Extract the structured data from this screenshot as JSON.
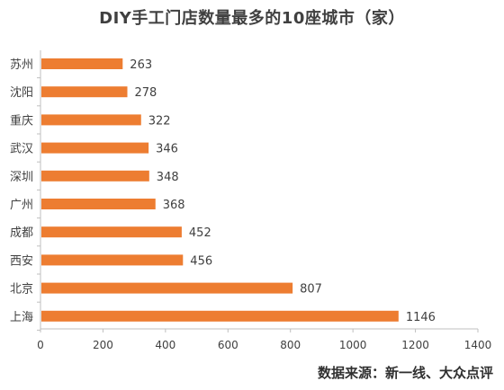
{
  "chart_data": {
    "type": "bar",
    "orientation": "horizontal",
    "title": "DIY手工门店数量最多的10座城市（家）",
    "categories": [
      "苏州",
      "沈阳",
      "重庆",
      "武汉",
      "深圳",
      "广州",
      "成都",
      "西安",
      "北京",
      "上海"
    ],
    "values": [
      263,
      278,
      322,
      346,
      348,
      368,
      452,
      456,
      807,
      1146
    ],
    "xlim": [
      0,
      1400
    ],
    "xticks": [
      0,
      200,
      400,
      600,
      800,
      1000,
      1200,
      1400
    ],
    "bar_color": "#ED7D31",
    "axis_color": "#BFBFBF",
    "grid": false,
    "legend": "none"
  },
  "source_note": "数据来源：新一线、大众点评"
}
